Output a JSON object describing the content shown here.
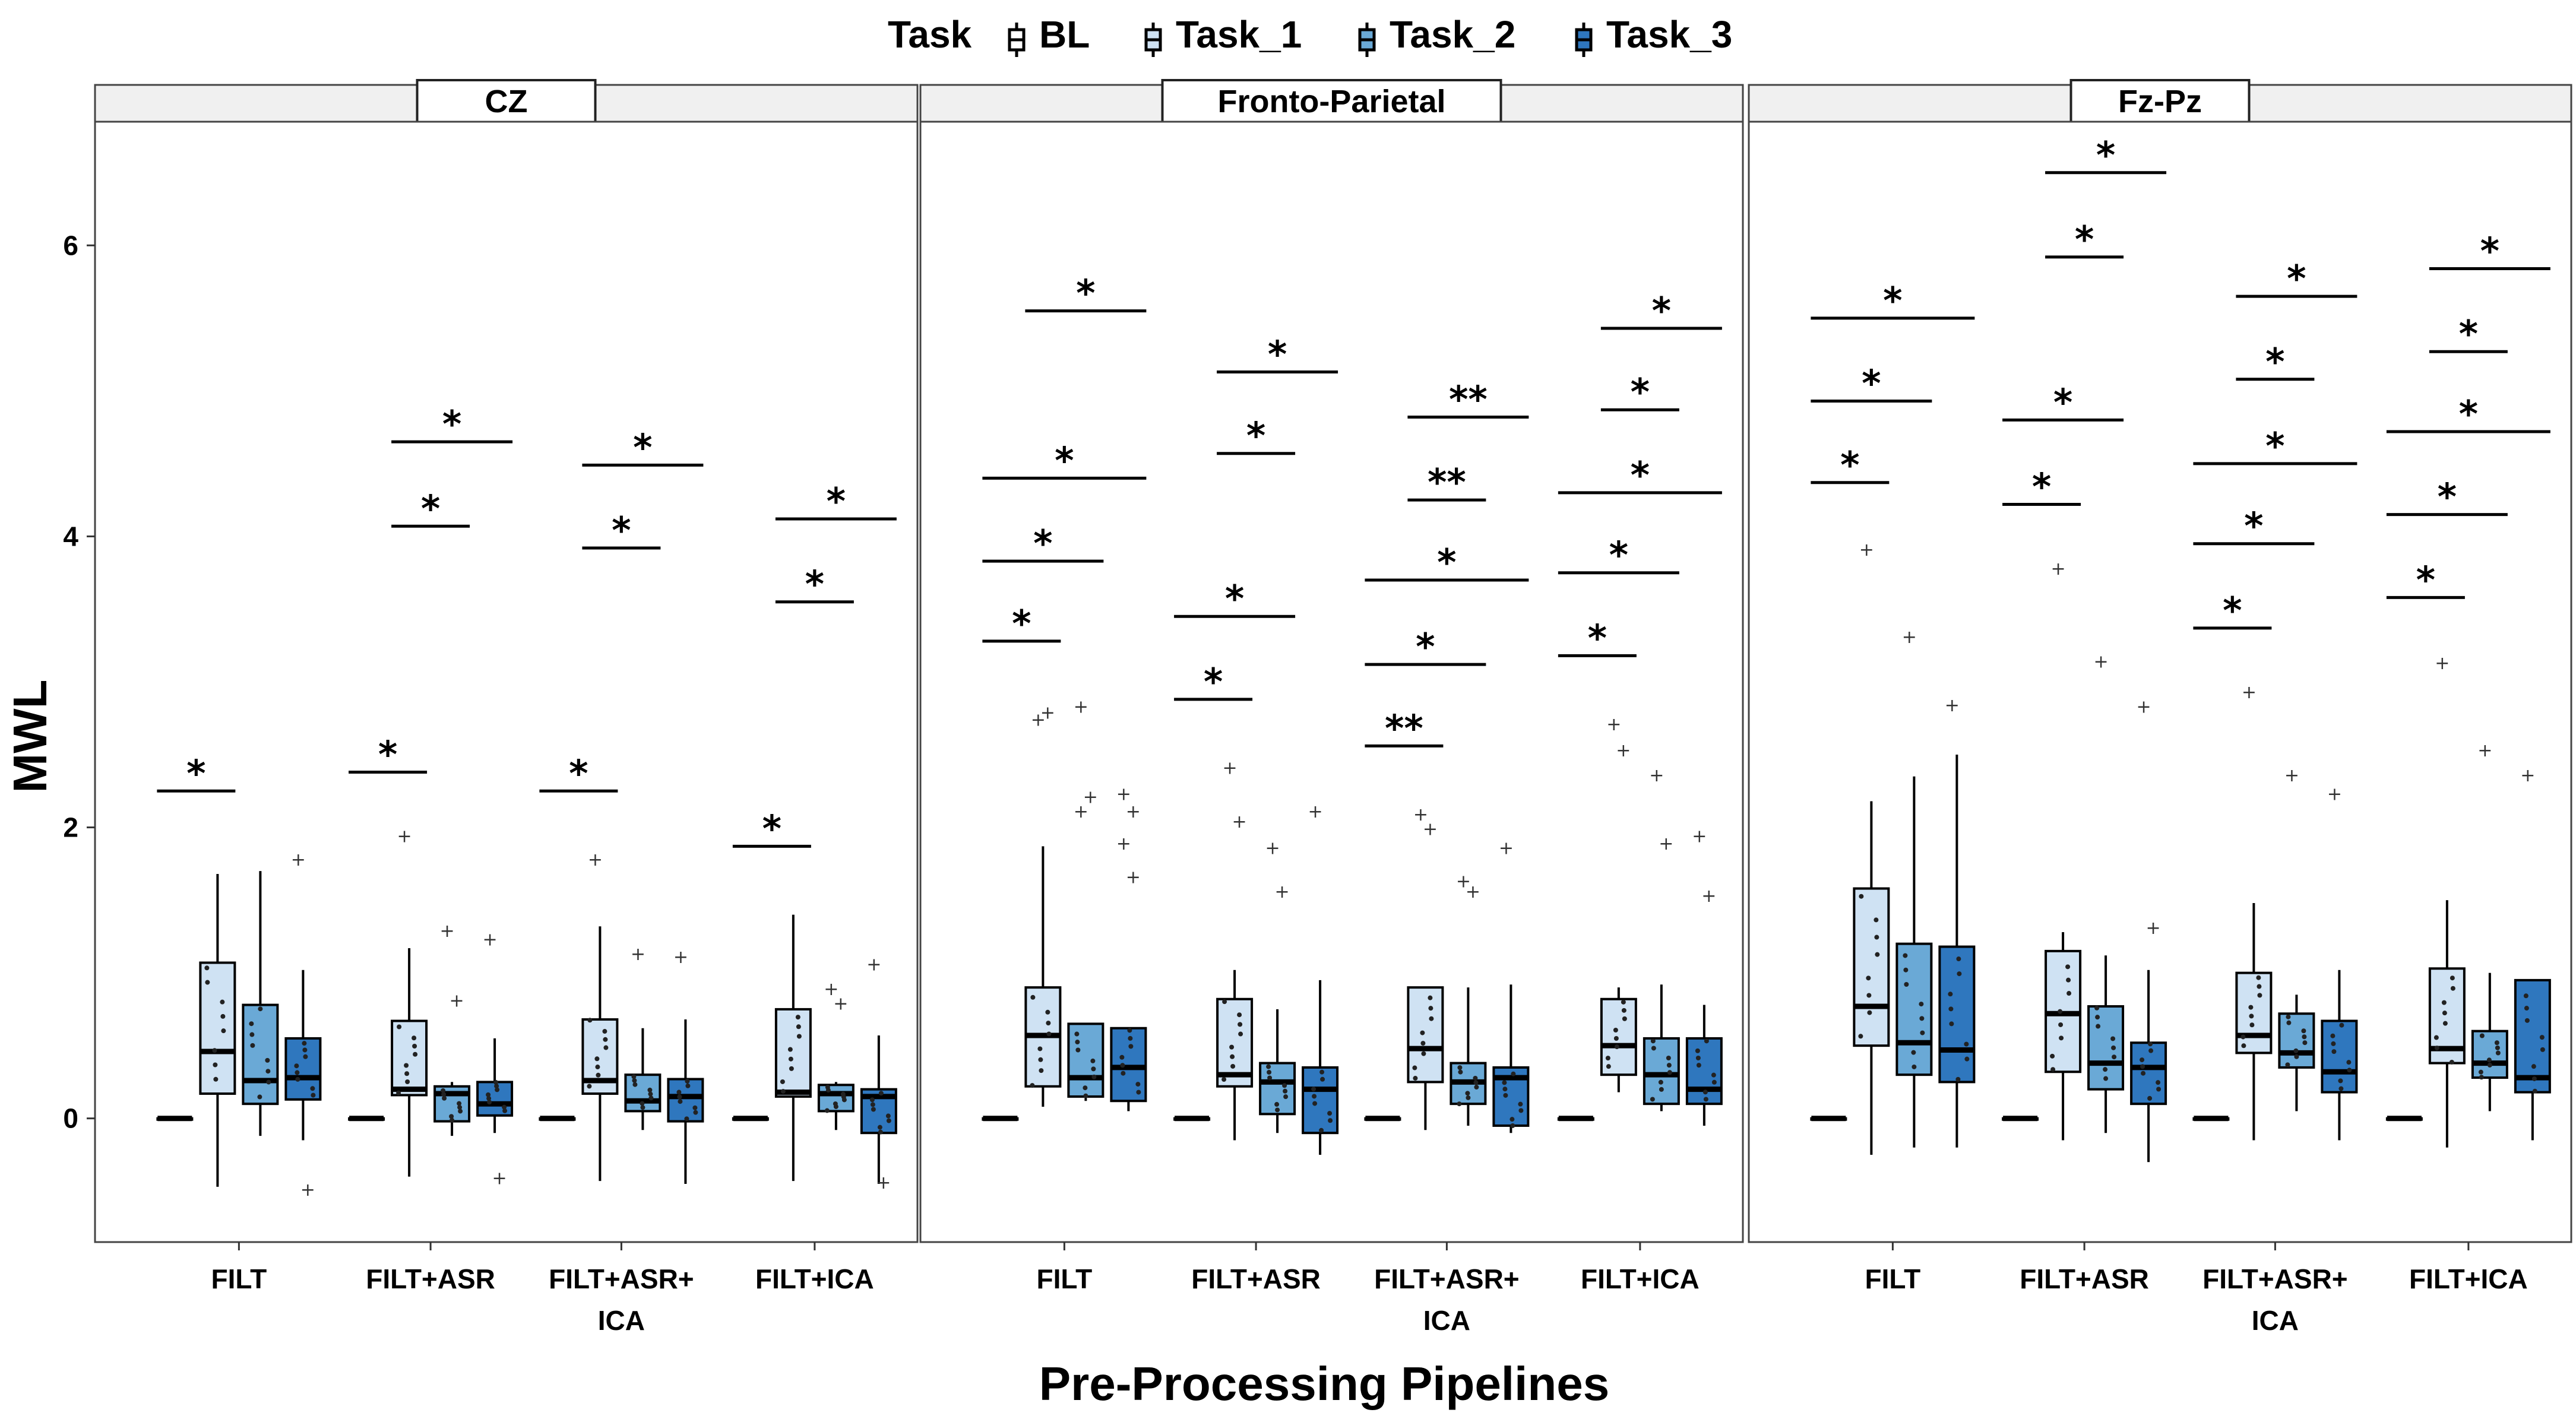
{
  "chart_data": {
    "type": "boxplot",
    "xlabel": "Pre-Processing Pipelines",
    "ylabel": "MWL",
    "ylim": [
      -0.85,
      6.85
    ],
    "yticks": [
      0,
      2,
      4,
      6
    ],
    "legend": {
      "title": "Task",
      "position": "top",
      "entries": [
        "BL",
        "Task_1",
        "Task_2",
        "Task_3"
      ],
      "colors": [
        "#ffffff",
        "#cfe2f3",
        "#6aa9d6",
        "#2f77be"
      ]
    },
    "categories": [
      [
        "FILT"
      ],
      [
        "FILT+ASR"
      ],
      [
        "FILT+ASR+",
        "ICA"
      ],
      [
        "FILT+ICA"
      ]
    ],
    "facets": [
      {
        "title": "CZ",
        "groups": [
          {
            "boxes": [
              [
                0,
                0,
                0,
                0,
                0
              ],
              [
                -0.47,
                0.17,
                0.46,
                1.07,
                1.68
              ],
              [
                -0.12,
                0.1,
                0.26,
                0.78,
                1.7
              ],
              [
                -0.15,
                0.13,
                0.28,
                0.55,
                1.02
              ]
            ],
            "outliers": [
              [],
              [],
              [],
              [
                1.77,
                -0.5
              ]
            ],
            "sig": [
              {
                "label": "*",
                "y": 2.25,
                "from": 0,
                "to": 1
              }
            ]
          },
          {
            "boxes": [
              [
                0,
                0,
                0,
                0,
                0
              ],
              [
                -0.4,
                0.16,
                0.2,
                0.67,
                1.17
              ],
              [
                -0.12,
                -0.02,
                0.17,
                0.22,
                0.25
              ],
              [
                -0.1,
                0.02,
                0.1,
                0.25,
                0.55
              ]
            ],
            "outliers": [
              [],
              [
                1.93
              ],
              [
                1.28,
                0.8
              ],
              [
                1.22,
                -0.42
              ]
            ],
            "sig": [
              {
                "label": "*",
                "y": 2.38,
                "from": 0,
                "to": 1
              },
              {
                "label": "*",
                "y": 4.07,
                "from": 1,
                "to": 2
              },
              {
                "label": "*",
                "y": 4.65,
                "from": 1,
                "to": 3
              }
            ]
          },
          {
            "boxes": [
              [
                0,
                0,
                0,
                0,
                0
              ],
              [
                -0.43,
                0.17,
                0.26,
                0.68,
                1.32
              ],
              [
                -0.08,
                0.05,
                0.12,
                0.3,
                0.62
              ],
              [
                -0.45,
                -0.02,
                0.15,
                0.27,
                0.68
              ]
            ],
            "outliers": [
              [],
              [
                1.77
              ],
              [
                1.12
              ],
              [
                1.1
              ]
            ],
            "sig": [
              {
                "label": "*",
                "y": 2.25,
                "from": 0,
                "to": 1
              },
              {
                "label": "*",
                "y": 3.92,
                "from": 1,
                "to": 2
              },
              {
                "label": "*",
                "y": 4.49,
                "from": 1,
                "to": 3
              }
            ]
          },
          {
            "boxes": [
              [
                0,
                0,
                0,
                0,
                0
              ],
              [
                -0.43,
                0.15,
                0.18,
                0.75,
                1.4
              ],
              [
                -0.08,
                0.05,
                0.17,
                0.23,
                0.25
              ],
              [
                -0.45,
                -0.1,
                0.15,
                0.2,
                0.57
              ]
            ],
            "outliers": [
              [],
              [],
              [
                0.88,
                0.78
              ],
              [
                1.05,
                -0.45
              ]
            ],
            "sig": [
              {
                "label": "*",
                "y": 1.87,
                "from": 0,
                "to": 1
              },
              {
                "label": "*",
                "y": 3.55,
                "from": 1,
                "to": 2
              },
              {
                "label": "*",
                "y": 4.12,
                "from": 1,
                "to": 3
              }
            ]
          }
        ]
      },
      {
        "title": "Fronto-Parietal",
        "groups": [
          {
            "boxes": [
              [
                0,
                0,
                0,
                0,
                0
              ],
              [
                0.08,
                0.22,
                0.57,
                0.9,
                1.87
              ],
              [
                0.12,
                0.15,
                0.28,
                0.65,
                0.65
              ],
              [
                0.05,
                0.12,
                0.35,
                0.62,
                0.62
              ]
            ],
            "outliers": [
              [],
              [
                2.73,
                2.78
              ],
              [
                2.82,
                2.2,
                2.1
              ],
              [
                2.22,
                2.1,
                1.88,
                1.65
              ]
            ],
            "sig": [
              {
                "label": "*",
                "y": 3.28,
                "from": 0,
                "to": 1
              },
              {
                "label": "*",
                "y": 3.83,
                "from": 0,
                "to": 2
              },
              {
                "label": "*",
                "y": 4.4,
                "from": 0,
                "to": 3
              },
              {
                "label": "*",
                "y": 5.55,
                "from": 1,
                "to": 3
              }
            ]
          },
          {
            "boxes": [
              [
                0,
                0,
                0,
                0,
                0
              ],
              [
                -0.15,
                0.22,
                0.3,
                0.82,
                1.02
              ],
              [
                -0.1,
                0.03,
                0.25,
                0.38,
                0.75
              ],
              [
                -0.25,
                -0.1,
                0.2,
                0.35,
                0.95
              ]
            ],
            "outliers": [
              [],
              [
                2.4,
                2.03
              ],
              [
                1.85,
                1.55
              ],
              [
                2.1
              ]
            ],
            "sig": [
              {
                "label": "*",
                "y": 2.88,
                "from": 0,
                "to": 1
              },
              {
                "label": "*",
                "y": 3.45,
                "from": 0,
                "to": 2
              },
              {
                "label": "*",
                "y": 4.57,
                "from": 1,
                "to": 2
              },
              {
                "label": "*",
                "y": 5.13,
                "from": 1,
                "to": 3
              }
            ]
          },
          {
            "boxes": [
              [
                0,
                0,
                0,
                0,
                0
              ],
              [
                -0.08,
                0.25,
                0.48,
                0.9,
                0.9
              ],
              [
                -0.05,
                0.1,
                0.25,
                0.38,
                0.9
              ],
              [
                -0.1,
                -0.05,
                0.28,
                0.35,
                0.92
              ]
            ],
            "outliers": [
              [],
              [
                2.08,
                1.98
              ],
              [
                1.62,
                1.55
              ],
              [
                1.85
              ]
            ],
            "sig": [
              {
                "label": "**",
                "y": 2.56,
                "from": 0,
                "to": 1
              },
              {
                "label": "*",
                "y": 3.12,
                "from": 0,
                "to": 2
              },
              {
                "label": "*",
                "y": 3.7,
                "from": 0,
                "to": 3
              },
              {
                "label": "**",
                "y": 4.25,
                "from": 1,
                "to": 2
              },
              {
                "label": "**",
                "y": 4.82,
                "from": 1,
                "to": 3
              }
            ]
          },
          {
            "boxes": [
              [
                0,
                0,
                0,
                0,
                0
              ],
              [
                0.18,
                0.3,
                0.5,
                0.82,
                0.9
              ],
              [
                0.05,
                0.1,
                0.3,
                0.55,
                0.92
              ],
              [
                -0.05,
                0.1,
                0.2,
                0.55,
                0.78
              ]
            ],
            "outliers": [
              [],
              [
                2.7,
                2.52
              ],
              [
                2.35,
                1.88
              ],
              [
                1.93,
                1.52
              ]
            ],
            "sig": [
              {
                "label": "*",
                "y": 3.18,
                "from": 0,
                "to": 1
              },
              {
                "label": "*",
                "y": 3.75,
                "from": 0,
                "to": 2
              },
              {
                "label": "*",
                "y": 4.3,
                "from": 0,
                "to": 3
              },
              {
                "label": "*",
                "y": 4.87,
                "from": 1,
                "to": 2
              },
              {
                "label": "*",
                "y": 5.43,
                "from": 1,
                "to": 3
              }
            ]
          }
        ]
      },
      {
        "title": "Fz-Pz",
        "groups": [
          {
            "boxes": [
              [
                0,
                0,
                0,
                0,
                0
              ],
              [
                -0.25,
                0.5,
                0.77,
                1.58,
                2.18
              ],
              [
                -0.2,
                0.3,
                0.52,
                1.2,
                2.35
              ],
              [
                -0.2,
                0.25,
                0.47,
                1.18,
                2.5
              ]
            ],
            "outliers": [
              [],
              [
                3.9
              ],
              [
                3.3
              ],
              [
                2.83
              ]
            ],
            "sig": [
              {
                "label": "*",
                "y": 4.37,
                "from": 0,
                "to": 1
              },
              {
                "label": "*",
                "y": 4.93,
                "from": 0,
                "to": 2
              },
              {
                "label": "*",
                "y": 5.5,
                "from": 0,
                "to": 3
              }
            ]
          },
          {
            "boxes": [
              [
                0,
                0,
                0,
                0,
                0
              ],
              [
                -0.15,
                0.32,
                0.72,
                1.15,
                1.28
              ],
              [
                -0.1,
                0.2,
                0.38,
                0.77,
                1.12
              ],
              [
                -0.3,
                0.1,
                0.35,
                0.52,
                1.02
              ]
            ],
            "outliers": [
              [],
              [
                3.77
              ],
              [
                3.13
              ],
              [
                2.82,
                1.3
              ]
            ],
            "sig": [
              {
                "label": "*",
                "y": 4.22,
                "from": 0,
                "to": 1
              },
              {
                "label": "*",
                "y": 4.8,
                "from": 0,
                "to": 2
              },
              {
                "label": "*",
                "y": 5.92,
                "from": 1,
                "to": 2
              },
              {
                "label": "*",
                "y": 6.5,
                "from": 1,
                "to": 3
              }
            ]
          },
          {
            "boxes": [
              [
                0,
                0,
                0,
                0,
                0
              ],
              [
                -0.15,
                0.45,
                0.57,
                1.0,
                1.48
              ],
              [
                0.05,
                0.35,
                0.45,
                0.72,
                0.85
              ],
              [
                -0.15,
                0.18,
                0.32,
                0.67,
                1.02
              ]
            ],
            "outliers": [
              [],
              [
                2.92
              ],
              [
                2.35
              ],
              [
                2.22
              ]
            ],
            "sig": [
              {
                "label": "*",
                "y": 3.37,
                "from": 0,
                "to": 1
              },
              {
                "label": "*",
                "y": 3.95,
                "from": 0,
                "to": 2
              },
              {
                "label": "*",
                "y": 4.5,
                "from": 0,
                "to": 3
              },
              {
                "label": "*",
                "y": 5.08,
                "from": 1,
                "to": 2
              },
              {
                "label": "*",
                "y": 5.65,
                "from": 1,
                "to": 3
              }
            ]
          },
          {
            "boxes": [
              [
                0,
                0,
                0,
                0,
                0
              ],
              [
                -0.2,
                0.38,
                0.48,
                1.03,
                1.5
              ],
              [
                0.05,
                0.28,
                0.38,
                0.6,
                1.0
              ],
              [
                -0.15,
                0.18,
                0.28,
                0.95,
                0.95
              ]
            ],
            "outliers": [
              [],
              [
                3.12
              ],
              [
                2.52
              ],
              [
                2.35
              ]
            ],
            "sig": [
              {
                "label": "*",
                "y": 3.58,
                "from": 0,
                "to": 1
              },
              {
                "label": "*",
                "y": 4.15,
                "from": 0,
                "to": 2
              },
              {
                "label": "*",
                "y": 4.72,
                "from": 0,
                "to": 3
              },
              {
                "label": "*",
                "y": 5.27,
                "from": 1,
                "to": 2
              },
              {
                "label": "*",
                "y": 5.84,
                "from": 1,
                "to": 3
              }
            ]
          }
        ]
      }
    ]
  }
}
